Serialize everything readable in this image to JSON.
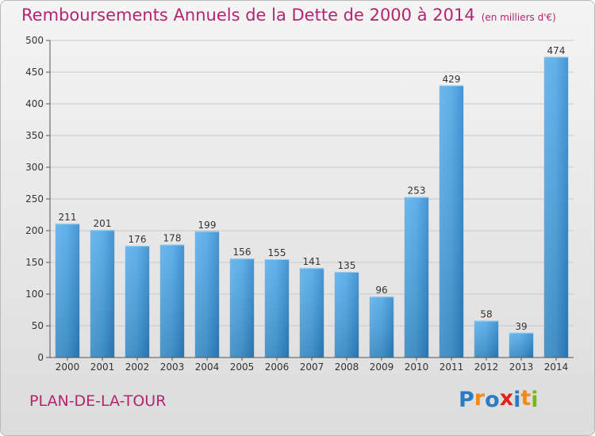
{
  "title": "Remboursements Annuels de la Dette de 2000 à 2014",
  "unit": "(en milliers d'€)",
  "commune": "PLAN-DE-LA-TOUR",
  "logo": {
    "letters": [
      "P",
      "r",
      "o",
      "x",
      "i",
      "t",
      "i"
    ],
    "colors": [
      "#2b7bc2",
      "#f08a1c",
      "#2b7bc2",
      "#e2231a",
      "#2b7bc2",
      "#f08a1c",
      "#7ab51d"
    ]
  },
  "colors": {
    "bar": "#3f9be0",
    "bar_light": "#6ab7ee",
    "bar_dark": "#2a7fc0",
    "title": "#b5246e"
  },
  "chart_data": {
    "type": "bar",
    "categories": [
      "2000",
      "2001",
      "2002",
      "2003",
      "2004",
      "2005",
      "2006",
      "2007",
      "2008",
      "2009",
      "2010",
      "2011",
      "2012",
      "2013",
      "2014"
    ],
    "values": [
      211,
      201,
      176,
      178,
      199,
      156,
      155,
      141,
      135,
      96,
      253,
      429,
      58,
      39,
      474
    ],
    "ylim": [
      0,
      500
    ],
    "yticks": [
      0,
      50,
      100,
      150,
      200,
      250,
      300,
      350,
      400,
      450,
      500
    ],
    "grid": true
  }
}
